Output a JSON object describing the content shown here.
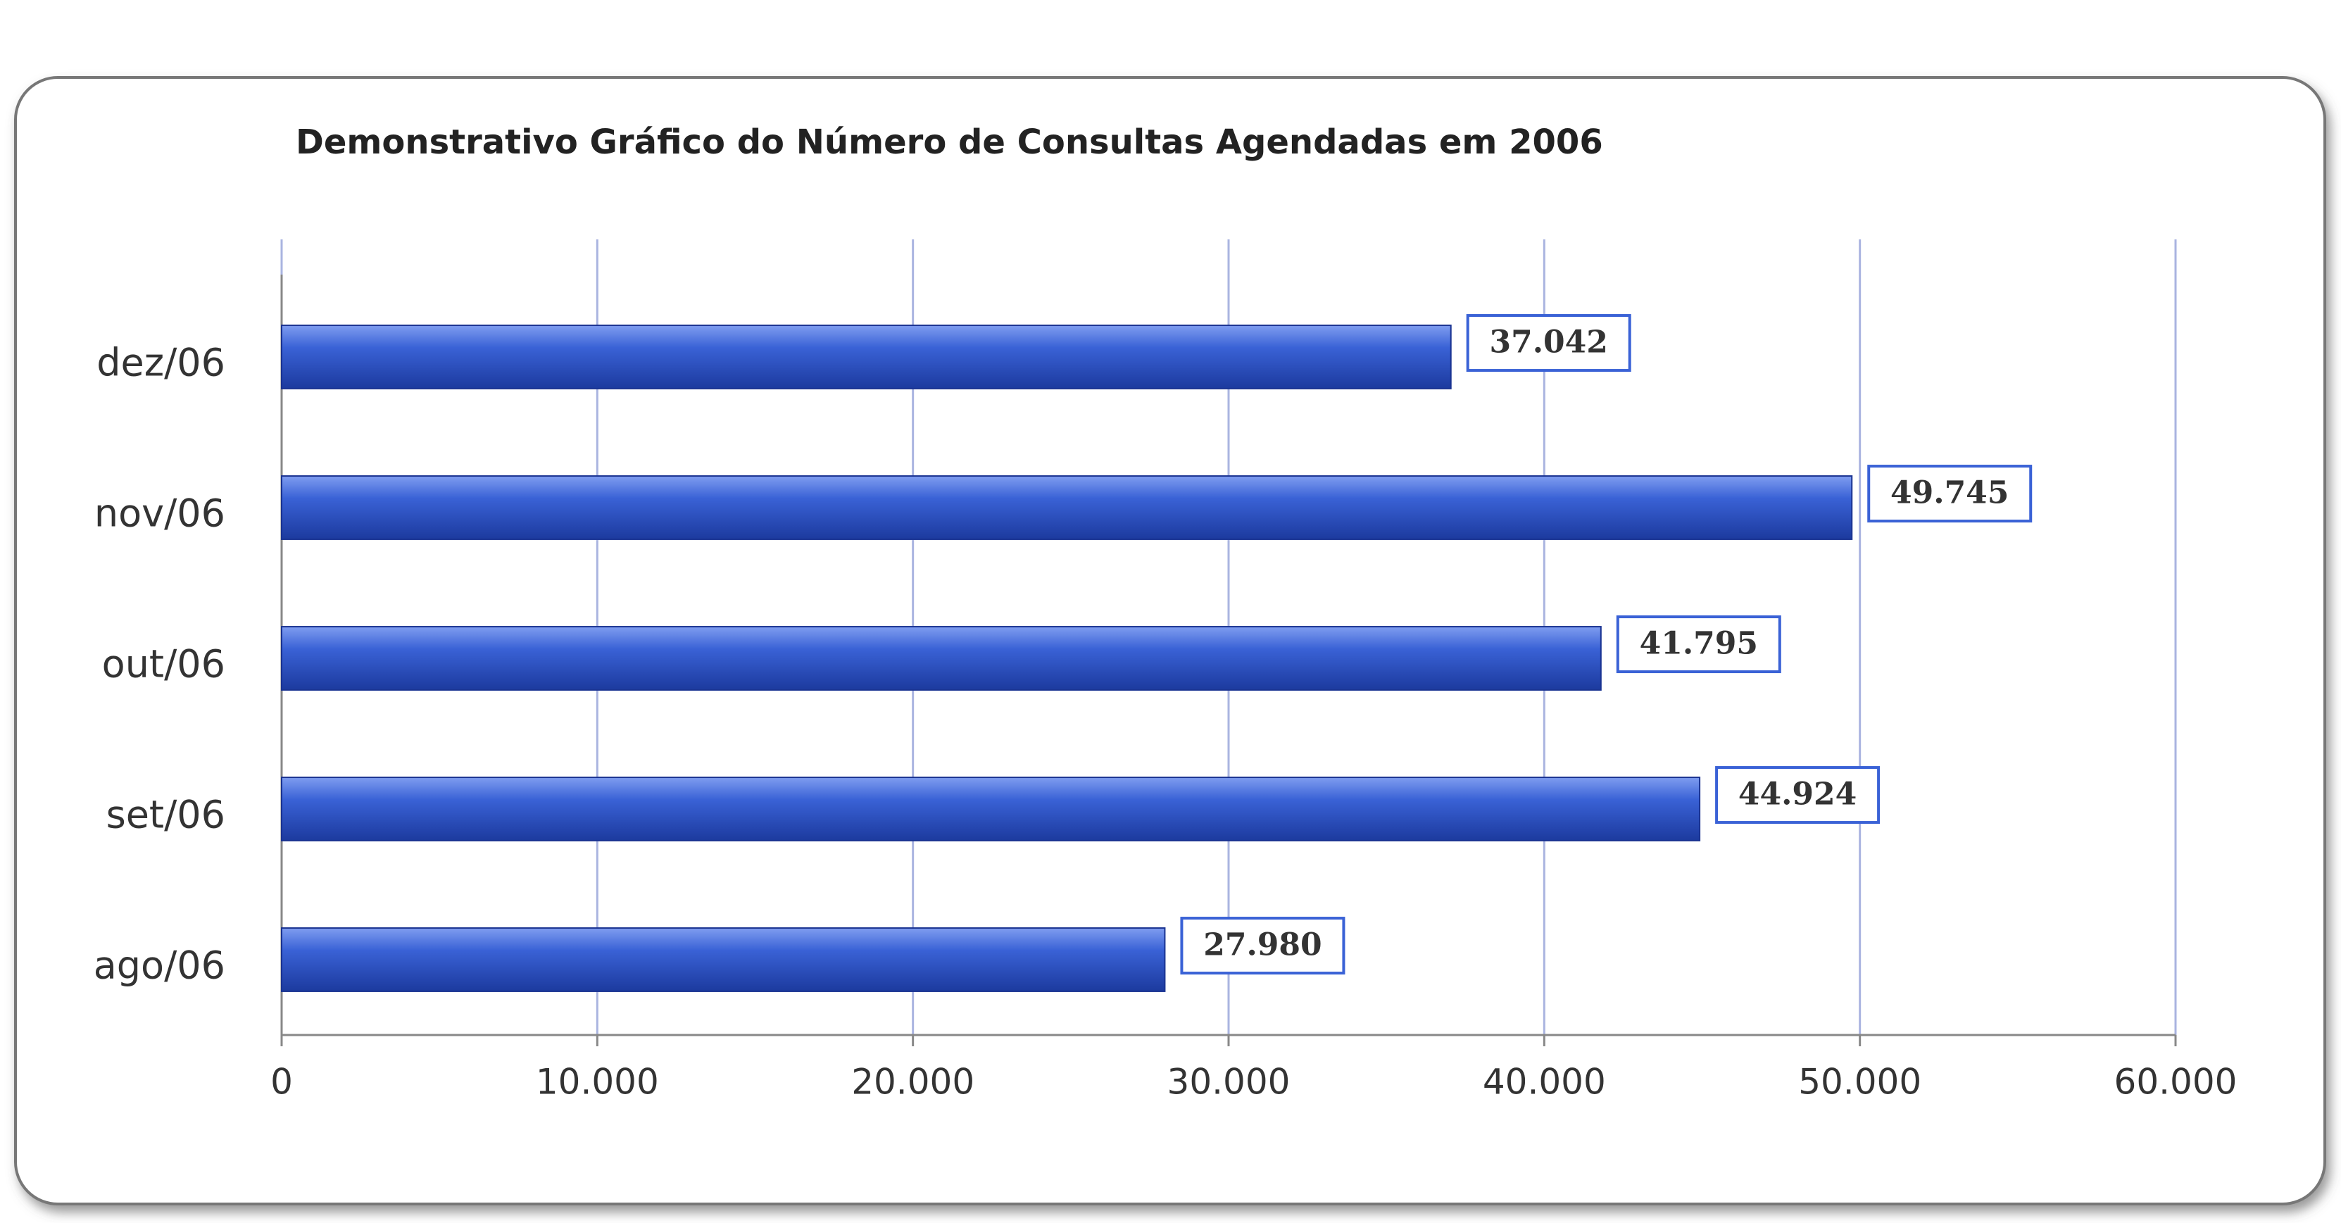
{
  "chart_data": {
    "type": "bar",
    "orientation": "horizontal",
    "title": "Demonstrativo Gráfico do Número de Consultas Agendadas em 2006",
    "categories": [
      "dez/06",
      "nov/06",
      "out/06",
      "set/06",
      "ago/06"
    ],
    "values": [
      37042,
      49745,
      41795,
      44924,
      27980
    ],
    "value_labels": [
      "37.042",
      "49.745",
      "41.795",
      "44.924",
      "27.980"
    ],
    "color": "#2a4fc2",
    "xlim": [
      0,
      60000
    ],
    "xticks": [
      0,
      {
        "value": 10000,
        "label": "10.000"
      },
      {
        "value": 20000,
        "label": "20.000"
      },
      {
        "value": 30000,
        "label": "30.000"
      },
      {
        "value": 40000,
        "label": "40.000"
      },
      {
        "value": 50000,
        "label": "50.000"
      },
      {
        "value": 60000,
        "label": "60.000"
      }
    ],
    "grid": true
  }
}
